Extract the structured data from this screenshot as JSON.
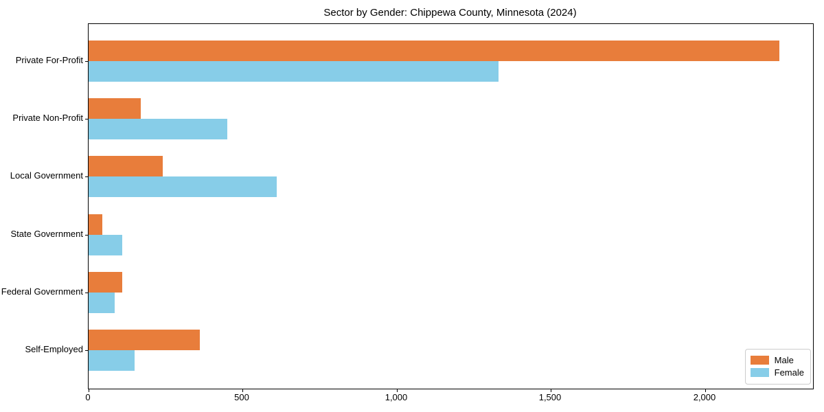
{
  "chart_data": {
    "type": "bar",
    "orientation": "horizontal",
    "title": "Sector by Gender: Chippewa County, Minnesota (2024)",
    "categories": [
      "Private For-Profit",
      "Private Non-Profit",
      "Local Government",
      "State Government",
      "Federal Government",
      "Self-Employed"
    ],
    "series": [
      {
        "name": "Male",
        "color": "#e87d3b",
        "values": [
          2240,
          170,
          240,
          45,
          110,
          360
        ]
      },
      {
        "name": "Female",
        "color": "#87cde8",
        "values": [
          1330,
          450,
          610,
          110,
          85,
          150
        ]
      }
    ],
    "xlabel": "",
    "ylabel": "",
    "xlim": [
      0,
      2350
    ],
    "xticks": [
      0,
      500,
      1000,
      1500,
      2000
    ],
    "xtick_labels": [
      "0",
      "500",
      "1,000",
      "1,500",
      "2,000"
    ],
    "grid": false,
    "legend_position": "lower right",
    "colors": {
      "axis": "#000000",
      "legend_border": "#cccccc",
      "background": "#ffffff"
    }
  }
}
